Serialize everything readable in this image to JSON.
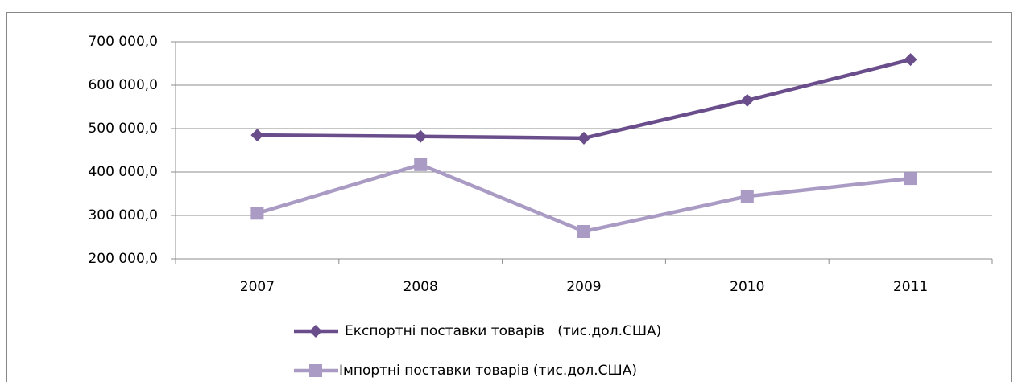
{
  "chart_data": {
    "type": "line",
    "categories": [
      "2007",
      "2008",
      "2009",
      "2010",
      "2011"
    ],
    "series": [
      {
        "name": "Експортні поставки товарів   (тис.дол.США)",
        "color": "#6a4e8c",
        "marker": "diamond",
        "values": [
          485000,
          482000,
          478000,
          565000,
          659000
        ]
      },
      {
        "name": "Імпортні поставки товарів (тис.дол.США)",
        "color": "#a99bc3",
        "marker": "square",
        "values": [
          305000,
          417000,
          263000,
          344000,
          385000
        ]
      }
    ],
    "ylim": [
      200000,
      700000
    ],
    "yticks": [
      {
        "value": 200000,
        "label": "200 000,0"
      },
      {
        "value": 300000,
        "label": "300 000,0"
      },
      {
        "value": 400000,
        "label": "400 000,0"
      },
      {
        "value": 500000,
        "label": "500 000,0"
      },
      {
        "value": 600000,
        "label": "600 000,0"
      },
      {
        "value": 700000,
        "label": "700 000,0"
      }
    ],
    "grid": true,
    "legend": "bottom"
  }
}
